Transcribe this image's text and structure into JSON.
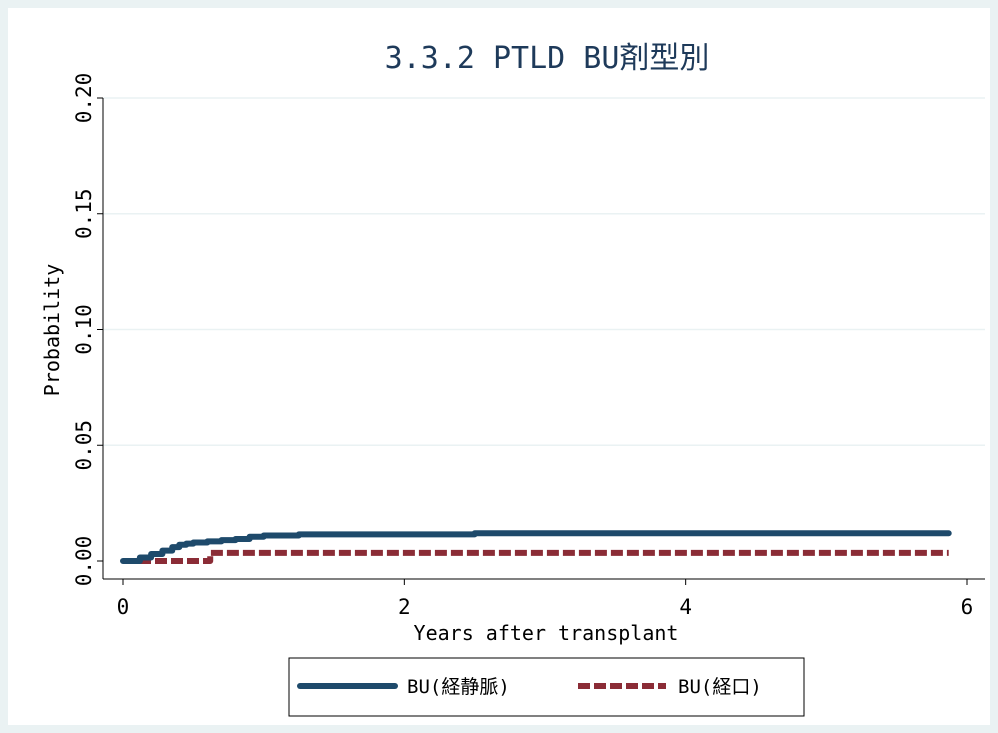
{
  "chart_data": {
    "type": "line",
    "title": "3.3.2 PTLD BU剤型別",
    "xlabel": "Years after transplant",
    "ylabel": "Probability",
    "xlim": [
      0,
      6
    ],
    "ylim": [
      0,
      0.2
    ],
    "xticks": [
      "0",
      "2",
      "4",
      "6"
    ],
    "yticks": [
      "0.00",
      "0.05",
      "0.10",
      "0.15",
      "0.20"
    ],
    "grid": "horizontal",
    "legend_position": "bottom",
    "series": [
      {
        "name": "BU(経静脈)",
        "color": "#1e4a6b",
        "style": "solid",
        "x": [
          0,
          0.08,
          0.12,
          0.2,
          0.28,
          0.35,
          0.4,
          0.45,
          0.5,
          0.6,
          0.7,
          0.8,
          0.9,
          1.0,
          1.25,
          2.5,
          5.87
        ],
        "y": [
          0,
          0,
          0.0015,
          0.003,
          0.0045,
          0.006,
          0.007,
          0.0075,
          0.008,
          0.0085,
          0.009,
          0.0095,
          0.0105,
          0.011,
          0.0115,
          0.012,
          0.012
        ]
      },
      {
        "name": "BU(経口)",
        "color": "#8b2c36",
        "style": "dashed",
        "x": [
          0,
          0.62,
          0.62,
          5.87
        ],
        "y": [
          0,
          0,
          0.0035,
          0.0035
        ]
      }
    ]
  }
}
